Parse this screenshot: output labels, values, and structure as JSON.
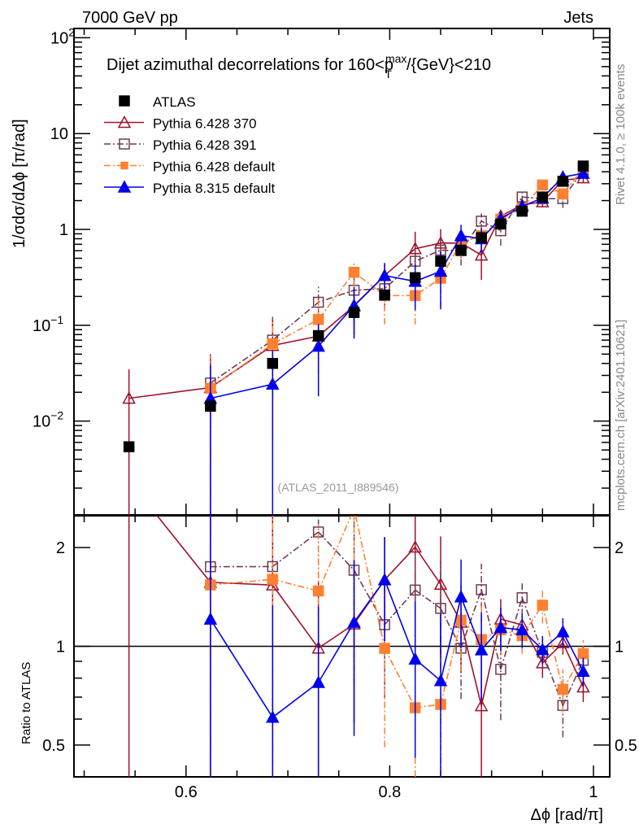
{
  "header": {
    "left": "7000 GeV pp",
    "right": "Jets"
  },
  "side_labels": {
    "rivet": "Rivet 4.1.0, ≥ 100k events",
    "mcplots": "mcplots.cern.ch [arXiv:2401.10621]"
  },
  "chart_data": {
    "type": "line",
    "title": "Dijet azimuthal decorrelations for 160<p_T^max/{GeV}<210",
    "title_main": "Dijet azimuthal decorrelations for 160<p",
    "title_sup": "max",
    "title_sub": "T",
    "title_tail": "/{GeV}<210",
    "analysis_label": "(ATLAS_2011_I889546)",
    "xlabel": "Δϕ [rad/π]",
    "ylabel": "1/σdσ/dΔϕ [π/rad]",
    "ratio_ylabel": "Ratio to ATLAS",
    "xlim": [
      0.49,
      1.016
    ],
    "ylim": [
      0.00105,
      125
    ],
    "yscale": "log",
    "ratio_ylim": [
      0.4,
      2.5
    ],
    "ratio_yscale": "log",
    "legend_position": "top-left",
    "x_ticks": [
      {
        "v": 0.6,
        "label": "0.6"
      },
      {
        "v": 0.8,
        "label": "0.8"
      },
      {
        "v": 1.0,
        "label": "1"
      }
    ],
    "y_ticks": [
      {
        "v": 100,
        "base": "10",
        "exp": "2"
      },
      {
        "v": 10,
        "base": "10",
        "exp": ""
      },
      {
        "v": 1,
        "base": "1",
        "exp": ""
      },
      {
        "v": 0.1,
        "base": "10",
        "exp": "−1"
      },
      {
        "v": 0.01,
        "base": "10",
        "exp": "−2"
      }
    ],
    "ratio_ticks": [
      {
        "v": 2,
        "label": "2"
      },
      {
        "v": 1,
        "label": "1"
      },
      {
        "v": 0.5,
        "label": "0.5"
      }
    ],
    "x": [
      0.544,
      0.624,
      0.685,
      0.73,
      0.765,
      0.795,
      0.825,
      0.85,
      0.87,
      0.89,
      0.909,
      0.93,
      0.95,
      0.97,
      0.99
    ],
    "reference": {
      "name": "ATLAS",
      "color": "#000000",
      "marker": "square-filled",
      "values": [
        0.0054,
        0.0143,
        0.04,
        0.078,
        0.136,
        0.207,
        0.314,
        0.466,
        0.608,
        0.82,
        1.14,
        1.55,
        2.18,
        3.18,
        4.59
      ]
    },
    "series": [
      {
        "name": "Pythia 6.428 370",
        "color": "#a0102a",
        "marker": "triangle-open",
        "dash": "",
        "values": [
          0.0173,
          0.0224,
          0.0615,
          0.077,
          0.159,
          0.33,
          0.63,
          0.72,
          0.72,
          0.54,
          1.38,
          1.8,
          1.94,
          3.26,
          3.45
        ],
        "rel_err": [
          1.0,
          1.2,
          0.9,
          0.6,
          0.5,
          0.35,
          0.5,
          0.4,
          0.3,
          0.45,
          0.15,
          0.12,
          0.1,
          0.08,
          0.1
        ]
      },
      {
        "name": "Pythia 6.428 391",
        "color": "#6e3b55",
        "marker": "square-open",
        "dash": "8,3,2,3",
        "values": [
          null,
          0.025,
          0.07,
          0.174,
          0.232,
          0.241,
          0.466,
          0.608,
          0.6,
          1.22,
          0.97,
          2.18,
          2.09,
          2.1,
          4.16
        ],
        "rel_err": [
          0,
          1.0,
          0.75,
          0.45,
          0.55,
          0.4,
          0.35,
          0.4,
          0.3,
          0.2,
          0.3,
          0.12,
          0.1,
          0.2,
          0.12
        ]
      },
      {
        "name": "Pythia 6.428 default",
        "color": "#ff8030",
        "marker": "square-filled",
        "dash": "8,3,2,3",
        "values": [
          null,
          0.022,
          0.064,
          0.115,
          0.357,
          0.204,
          0.204,
          0.31,
          0.73,
          0.86,
          1.28,
          1.67,
          2.91,
          2.35,
          4.36
        ],
        "rel_err": [
          0,
          1.2,
          0.8,
          0.6,
          0.3,
          0.5,
          0.5,
          0.5,
          0.3,
          0.3,
          0.15,
          0.12,
          0.12,
          0.15,
          0.1
        ]
      },
      {
        "name": "Pythia 8.315 default",
        "color": "#0000ee",
        "marker": "triangle-filled",
        "dash": "",
        "values": [
          null,
          0.0173,
          0.0243,
          0.0605,
          0.161,
          0.33,
          0.287,
          0.366,
          0.86,
          0.8,
          1.3,
          1.74,
          2.13,
          3.52,
          3.85
        ],
        "rel_err": [
          0,
          1.2,
          1.2,
          0.7,
          0.55,
          0.35,
          0.5,
          0.6,
          0.3,
          0.3,
          0.15,
          0.12,
          0.1,
          0.1,
          0.1
        ]
      }
    ]
  }
}
